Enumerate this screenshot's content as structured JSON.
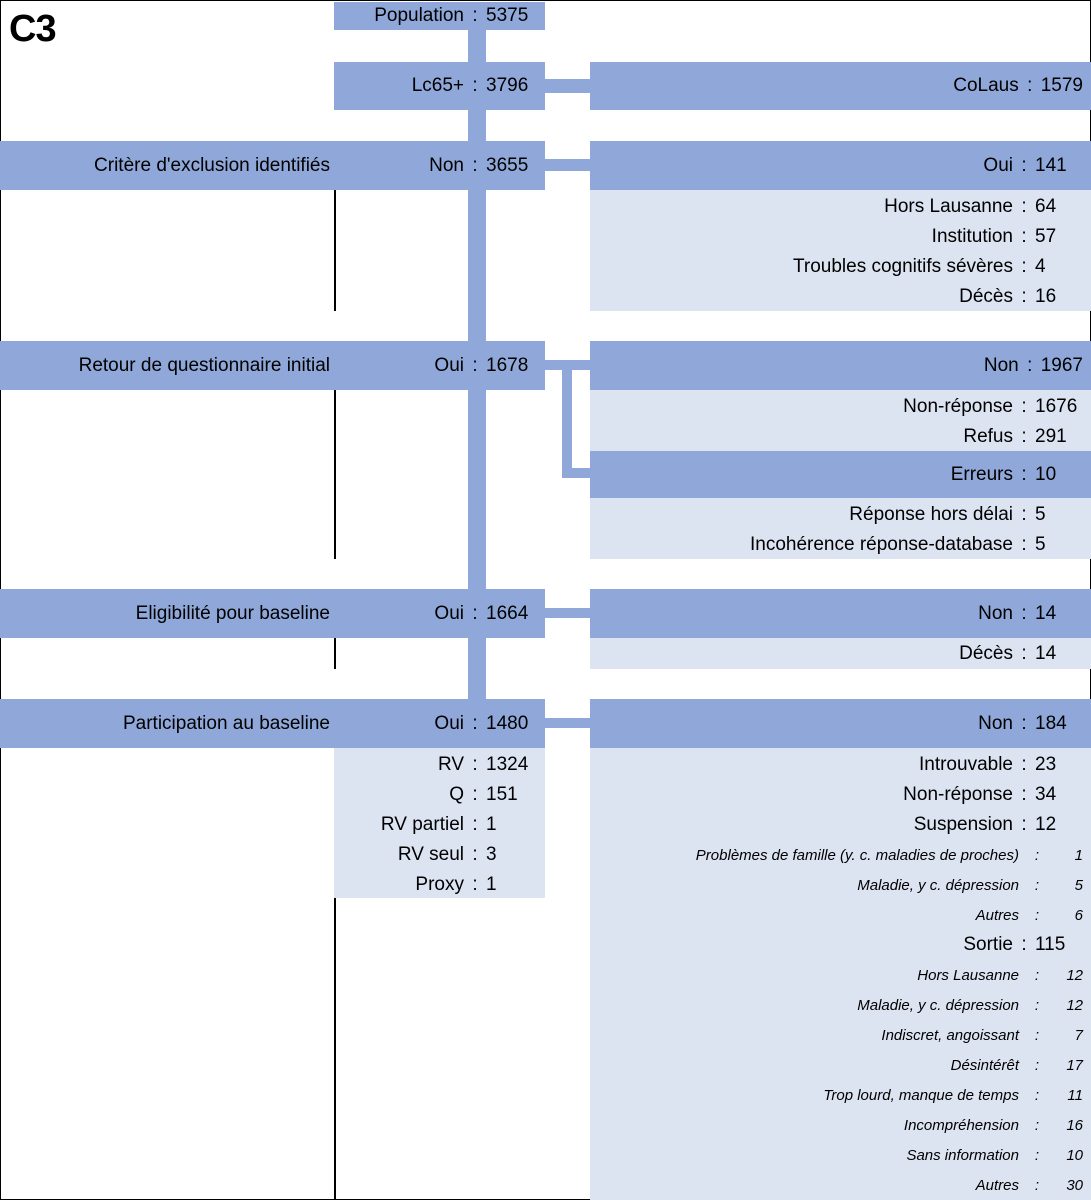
{
  "figure": {
    "tag": "C3"
  },
  "center": {
    "population": {
      "label": "Population",
      "value": "5375"
    },
    "lc65": {
      "label": "Lc65+",
      "value": "3796"
    },
    "exclusion": {
      "label": "Non",
      "value": "3655"
    },
    "questionnaire": {
      "label": "Oui",
      "value": "1678"
    },
    "eligibility": {
      "label": "Oui",
      "value": "1664"
    },
    "participation": {
      "label": "Oui",
      "value": "1480"
    }
  },
  "stages": {
    "exclusion": "Critère d'exclusion identifiés",
    "questionnaire": "Retour de questionnaire initial",
    "eligibility": "Eligibilité pour baseline",
    "participation": "Participation au baseline"
  },
  "colaus": {
    "label": "CoLaus",
    "value": "1579"
  },
  "exclusion_yes": {
    "label": "Oui",
    "value": "141",
    "items": [
      {
        "label": "Hors Lausanne",
        "value": "64"
      },
      {
        "label": "Institution",
        "value": "57"
      },
      {
        "label": "Troubles cognitifs sévères",
        "value": "4"
      },
      {
        "label": "Décès",
        "value": "16"
      }
    ]
  },
  "questionnaire_no": {
    "label": "Non",
    "value": "1967",
    "items": [
      {
        "label": "Non-réponse",
        "value": "1676"
      },
      {
        "label": "Refus",
        "value": "291"
      }
    ]
  },
  "questionnaire_errors": {
    "label": "Erreurs",
    "value": "10",
    "items": [
      {
        "label": "Réponse hors délai",
        "value": "5"
      },
      {
        "label": "Incohérence réponse-database",
        "value": "5"
      }
    ]
  },
  "eligibility_no": {
    "label": "Non",
    "value": "14",
    "items": [
      {
        "label": "Décès",
        "value": "14"
      }
    ]
  },
  "participation_yes": {
    "items": [
      {
        "label": "RV",
        "value": "1324"
      },
      {
        "label": "Q",
        "value": "151"
      },
      {
        "label": "RV partiel",
        "value": "1"
      },
      {
        "label": "RV seul",
        "value": "3"
      },
      {
        "label": "Proxy",
        "value": "1"
      }
    ]
  },
  "participation_no": {
    "label": "Non",
    "value": "184",
    "items": [
      {
        "label": "Introuvable",
        "value": "23"
      },
      {
        "label": "Non-réponse",
        "value": "34"
      },
      {
        "label": "Suspension",
        "value": "12"
      }
    ],
    "suspension_items": [
      {
        "label": "Problèmes de famille (y. c. maladies de proches)",
        "value": "1"
      },
      {
        "label": "Maladie, y c. dépression",
        "value": "5"
      },
      {
        "label": "Autres",
        "value": "6"
      }
    ],
    "exit": {
      "label": "Sortie",
      "value": "115"
    },
    "exit_items": [
      {
        "label": "Hors Lausanne",
        "value": "12"
      },
      {
        "label": "Maladie, y c. dépression",
        "value": "12"
      },
      {
        "label": "Indiscret, angoissant",
        "value": "7"
      },
      {
        "label": "Désintérêt",
        "value": "17"
      },
      {
        "label": "Trop lourd, manque de temps",
        "value": "11"
      },
      {
        "label": "Incompréhension",
        "value": "16"
      },
      {
        "label": "Sans information",
        "value": "10"
      },
      {
        "label": "Autres",
        "value": "30"
      }
    ]
  }
}
